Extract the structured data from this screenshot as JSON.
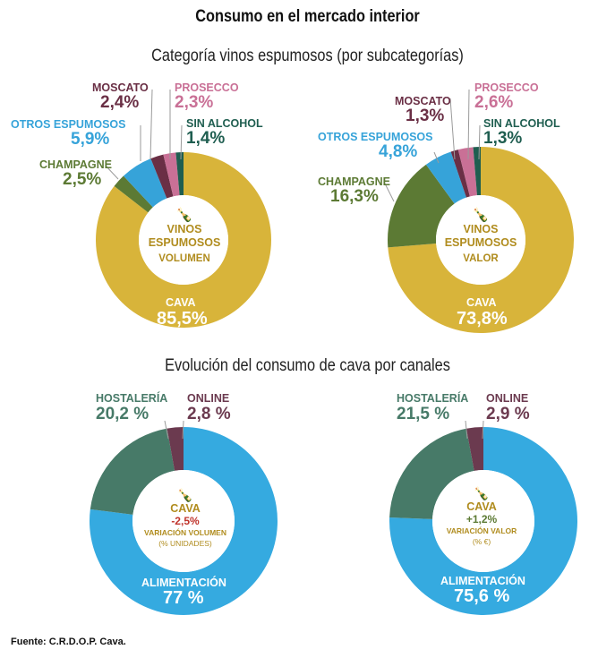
{
  "header": {
    "title": "Consumo en el mercado interior",
    "section1": "Categoría vinos espumosos (por subcategorías)",
    "section2": "Evolución del consumo de cava por canales"
  },
  "colors": {
    "cava": "#d8b43a",
    "champagne": "#5c7a34",
    "otros": "#36a3d9",
    "moscato": "#6a2f45",
    "prosecco": "#c97096",
    "sin_alcohol": "#1f5e50",
    "alimentacion": "#35aae0",
    "hostaleria": "#477a68",
    "online": "#6b3a4f",
    "center_text": "#b08c1e",
    "negative": "#c0342c",
    "positive": "#5c7a34"
  },
  "chart_data": [
    {
      "type": "pie",
      "center": [
        "VINOS",
        "ESPUMOSOS",
        "VOLUMEN"
      ],
      "slices": [
        {
          "name": "CAVA",
          "label": "85,5%",
          "value": 85.5,
          "color": "cava"
        },
        {
          "name": "CHAMPAGNE",
          "label": "2,5%",
          "value": 2.5,
          "color": "champagne"
        },
        {
          "name": "OTROS ESPUMOSOS",
          "label": "5,9%",
          "value": 5.9,
          "color": "otros"
        },
        {
          "name": "MOSCATO",
          "label": "2,4%",
          "value": 2.4,
          "color": "moscato"
        },
        {
          "name": "PROSECCO",
          "label": "2,3%",
          "value": 2.3,
          "color": "prosecco"
        },
        {
          "name": "SIN ALCOHOL",
          "label": "1,4%",
          "value": 1.4,
          "color": "sin_alcohol"
        }
      ]
    },
    {
      "type": "pie",
      "center": [
        "VINOS",
        "ESPUMOSOS",
        "VALOR"
      ],
      "slices": [
        {
          "name": "CAVA",
          "label": "73,8%",
          "value": 73.8,
          "color": "cava"
        },
        {
          "name": "CHAMPAGNE",
          "label": "16,3%",
          "value": 16.3,
          "color": "champagne"
        },
        {
          "name": "OTROS ESPUMOSOS",
          "label": "4,8%",
          "value": 4.8,
          "color": "otros"
        },
        {
          "name": "MOSCATO",
          "label": "1,3%",
          "value": 1.3,
          "color": "moscato"
        },
        {
          "name": "PROSECCO",
          "label": "2,6%",
          "value": 2.6,
          "color": "prosecco"
        },
        {
          "name": "SIN ALCOHOL",
          "label": "1,3%",
          "value": 1.3,
          "color": "sin_alcohol"
        }
      ]
    },
    {
      "type": "pie",
      "center": [
        "CAVA",
        "-2,5%",
        "VARIACIÓN VOLUMEN",
        "(% UNIDADES)"
      ],
      "slices": [
        {
          "name": "ALIMENTACIÓN",
          "label": "77 %",
          "value": 77,
          "color": "alimentacion"
        },
        {
          "name": "HOSTALERÍA",
          "label": "20,2 %",
          "value": 20.2,
          "color": "hostaleria"
        },
        {
          "name": "ONLINE",
          "label": "2,8 %",
          "value": 2.8,
          "color": "online"
        }
      ]
    },
    {
      "type": "pie",
      "center": [
        "CAVA",
        "+1,2%",
        "VARIACIÓN VALOR",
        "(% €)"
      ],
      "slices": [
        {
          "name": "ALIMENTACIÓN",
          "label": "75,6 %",
          "value": 75.6,
          "color": "alimentacion"
        },
        {
          "name": "HOSTALERÍA",
          "label": "21,5 %",
          "value": 21.5,
          "color": "hostaleria"
        },
        {
          "name": "ONLINE",
          "label": "2,9 %",
          "value": 2.9,
          "color": "online"
        }
      ]
    }
  ],
  "footer": {
    "source": "Fuente: C.R.D.O.P. Cava."
  }
}
